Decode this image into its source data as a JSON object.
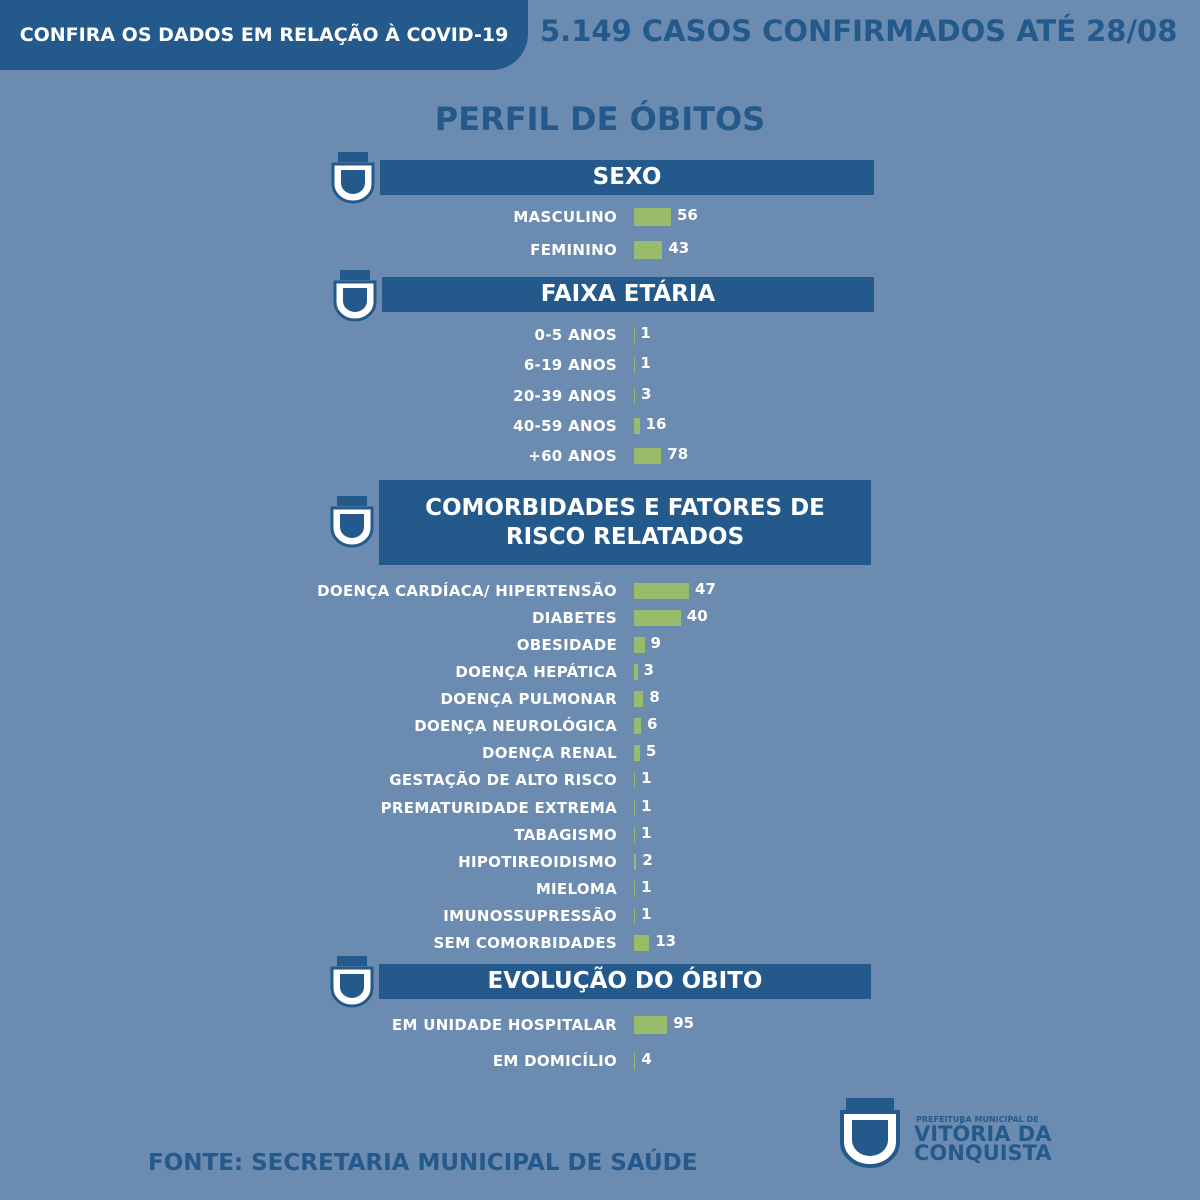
{
  "header": {
    "badge": "CONFIRA OS DADOS EM RELAÇÃO À COVID-19",
    "headline": "5.149 CASOS CONFIRMADOS ATÉ 28/08"
  },
  "title": "PERFIL DE ÓBITOS",
  "chart_data": [
    {
      "type": "bar",
      "title": "SEXO",
      "color": "#98bb6c",
      "categories": [
        "MASCULINO",
        "FEMININO"
      ],
      "values": [
        56,
        43
      ]
    },
    {
      "type": "bar",
      "title": "FAIXA ETÁRIA",
      "color": "#98bb6c",
      "categories": [
        "0-5 ANOS",
        "6-19 ANOS",
        "20-39 ANOS",
        "40-59 ANOS",
        "+60 ANOS"
      ],
      "values": [
        1,
        1,
        3,
        16,
        78
      ]
    },
    {
      "type": "bar",
      "title": "COMORBIDADES E FATORES DE RISCO RELATADOS",
      "color": "#98bb6c",
      "categories": [
        "DOENÇA CARDÍACA/ HIPERTENSÃO",
        "DIABETES",
        "OBESIDADE",
        "DOENÇA HEPÁTICA",
        "DOENÇA PULMONAR",
        "DOENÇA NEUROLÓGICA",
        "DOENÇA RENAL",
        "GESTAÇÃO DE ALTO RISCO",
        "PREMATURIDADE EXTREMA",
        "TABAGISMO",
        "HIPOTIREOIDISMO",
        "MIELOMA",
        "IMUNOSSUPRESSÃO",
        "SEM COMORBIDADES"
      ],
      "values": [
        47,
        40,
        9,
        3,
        8,
        6,
        5,
        1,
        1,
        1,
        2,
        1,
        1,
        13
      ]
    },
    {
      "type": "bar",
      "title": "EVOLUÇÃO DO ÓBITO",
      "color": "#98bb6c",
      "categories": [
        "EM UNIDADE HOSPITALAR",
        "EM DOMICÍLIO"
      ],
      "values": [
        95,
        4
      ]
    }
  ],
  "footer": {
    "source": "FONTE: SECRETARIA MUNICIPAL DE SAÚDE",
    "logo_top": "PREFEITURA MUNICIPAL DE",
    "logo_line1": "VITÓRIA DA",
    "logo_line2": "CONQUISTA"
  }
}
